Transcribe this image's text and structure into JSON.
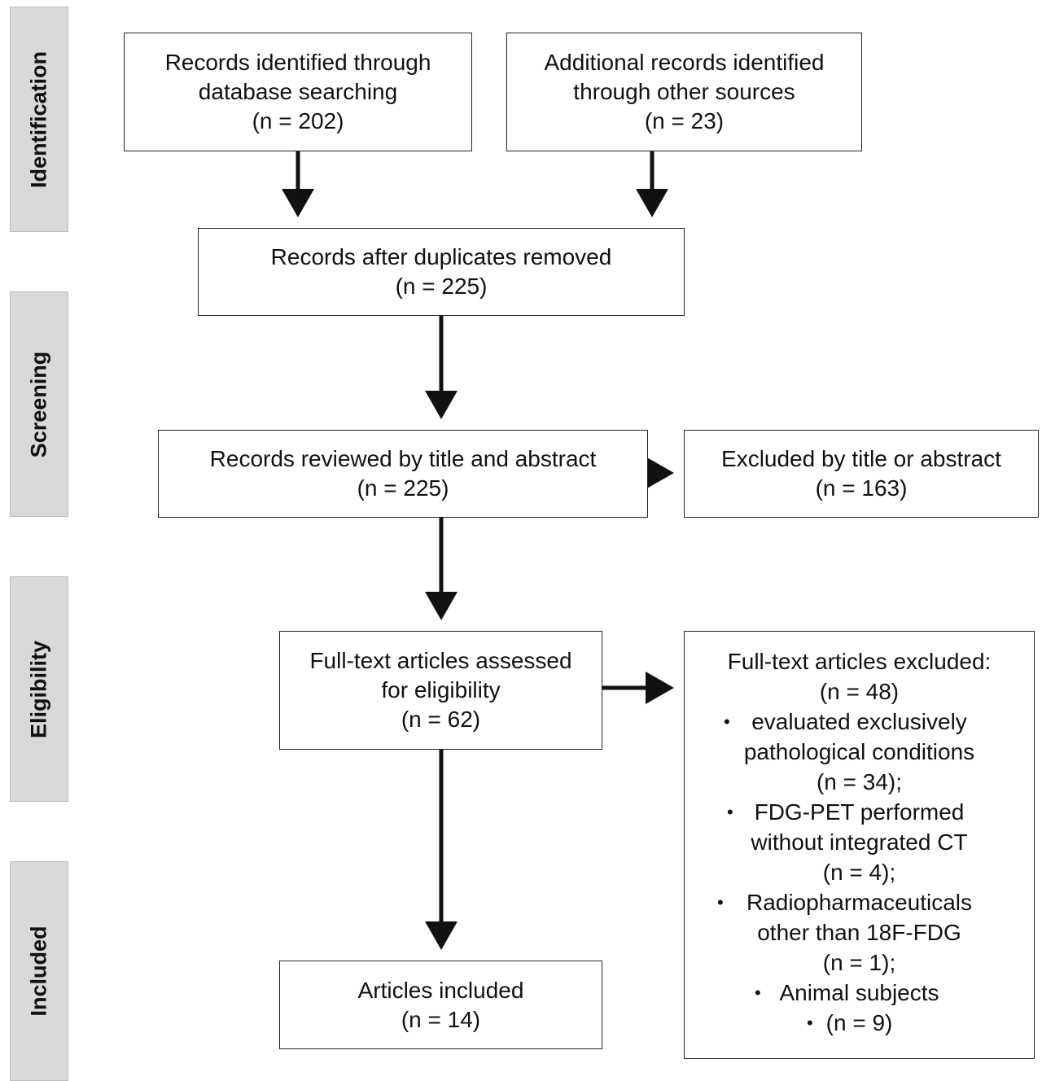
{
  "phases": {
    "identification": "Identification",
    "screening": "Screening",
    "eligibility": "Eligibility",
    "included": "Included"
  },
  "boxes": {
    "database": {
      "line1": "Records identified through",
      "line2": "database searching",
      "count": "(n = 202)"
    },
    "other_sources": {
      "line1": "Additional records identified",
      "line2": "through other sources",
      "count": "(n = 23)"
    },
    "duplicates_removed": {
      "line1": "Records after duplicates removed",
      "count": "(n = 225)"
    },
    "reviewed": {
      "line1": "Records reviewed by title and abstract",
      "count": "(n = 225)"
    },
    "excluded_title": {
      "line1": "Excluded by title or abstract",
      "count": "(n = 163)"
    },
    "fulltext_assessed": {
      "line1": "Full-text articles assessed",
      "line2": "for eligibility",
      "count": "(n = 62)"
    },
    "included": {
      "line1": "Articles included",
      "count": "(n = 14)"
    },
    "fulltext_excluded": {
      "heading": "Full-text articles excluded:",
      "count": "(n = 48)",
      "bullet_marker": "•",
      "reasons": [
        {
          "lines": [
            "evaluated exclusively",
            "pathological conditions",
            "(n = 34);"
          ]
        },
        {
          "lines": [
            "FDG-PET performed",
            "without integrated CT",
            "(n = 4);"
          ]
        },
        {
          "lines": [
            "Radiopharmaceuticals",
            "other than 18F-FDG",
            "(n = 1);"
          ]
        },
        {
          "lines": [
            "Animal subjects"
          ]
        },
        {
          "lines": [
            "(n = 9)"
          ]
        }
      ]
    }
  }
}
